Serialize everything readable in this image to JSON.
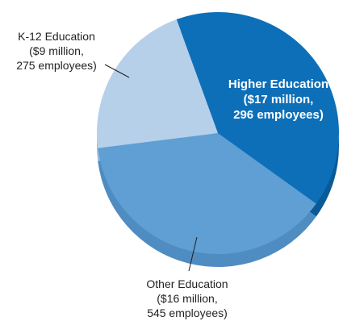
{
  "chart_data": {
    "type": "pie",
    "title": "",
    "slices": [
      {
        "label": "Higher Education",
        "detail_1": "($17 million,",
        "detail_2": "296 employees)",
        "value": 17,
        "employees": 296,
        "color": "#0d6fb8",
        "shade": "#0a5a98"
      },
      {
        "label": "Other Education",
        "detail_1": "($16 million,",
        "detail_2": "545 employees)",
        "value": 16,
        "employees": 545,
        "color": "#5f9fd4",
        "shade": "#4f8cc2"
      },
      {
        "label": "K-12 Education",
        "detail_1": "($9 million,",
        "detail_2": "275 employees)",
        "value": 9,
        "employees": 275,
        "color": "#b7d0ea",
        "shade": "#9dbbdc"
      }
    ]
  }
}
